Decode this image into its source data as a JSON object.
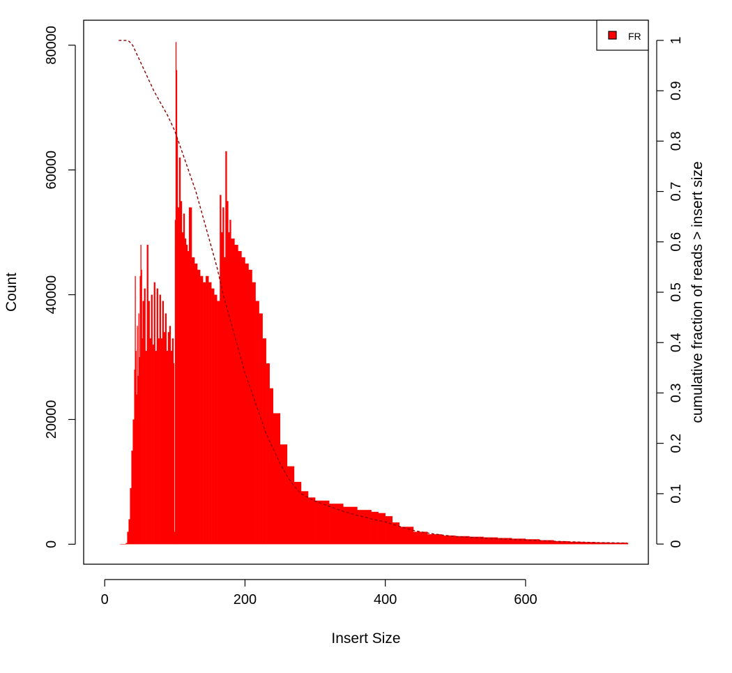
{
  "chart_data": {
    "type": "bar",
    "title": "",
    "xlabel": "Insert Size",
    "ylabel": "Count",
    "y2label": "cumulative fraction of reads > insert size",
    "xlim": [
      -30,
      775
    ],
    "ylim": [
      -3200,
      84000
    ],
    "y2lim": [
      -0.04,
      1.04
    ],
    "x_ticks": [
      0,
      200,
      400,
      600
    ],
    "y_ticks": [
      0,
      20000,
      40000,
      60000,
      80000
    ],
    "y2_ticks": [
      0,
      0.1,
      0.2,
      0.3,
      0.4,
      0.5,
      0.6,
      0.7,
      0.8,
      0.9,
      1
    ],
    "bar_color": "#ff0000",
    "legend": {
      "position": "top-right",
      "entries": [
        {
          "label": "FR",
          "color": "#ff0000"
        }
      ]
    },
    "series": [
      {
        "name": "FR",
        "kind": "bar",
        "x": [
          22,
          26,
          30,
          32,
          34,
          36,
          38,
          40,
          42,
          43,
          44,
          45,
          46,
          47,
          48,
          49,
          50,
          51,
          52,
          53,
          54,
          56,
          58,
          60,
          62,
          64,
          66,
          68,
          70,
          72,
          74,
          76,
          78,
          80,
          82,
          84,
          86,
          88,
          90,
          92,
          94,
          96,
          98,
          99,
          100,
          101,
          102,
          103,
          104,
          106,
          108,
          110,
          112,
          114,
          116,
          118,
          120,
          124,
          128,
          132,
          136,
          140,
          144,
          148,
          152,
          156,
          160,
          164,
          166,
          168,
          170,
          172,
          174,
          176,
          178,
          180,
          185,
          190,
          195,
          200,
          205,
          210,
          215,
          220,
          225,
          230,
          235,
          240,
          250,
          260,
          270,
          280,
          290,
          300,
          320,
          340,
          360,
          380,
          390,
          400,
          410,
          420,
          440,
          460,
          480,
          500,
          520,
          540,
          560,
          580,
          600,
          620,
          640,
          660,
          680,
          700,
          720,
          745
        ],
        "y": [
          0,
          0,
          200,
          2000,
          4000,
          9000,
          15000,
          20000,
          28000,
          43000,
          31000,
          24000,
          35000,
          27000,
          37000,
          30000,
          43000,
          48000,
          44000,
          33000,
          39000,
          41000,
          31000,
          48000,
          39000,
          33000,
          40000,
          32000,
          42000,
          31000,
          41000,
          33000,
          40000,
          33000,
          39000,
          34000,
          37000,
          31000,
          34000,
          35000,
          31000,
          33000,
          29000,
          2000,
          52000,
          80500,
          76000,
          65000,
          54000,
          62000,
          55000,
          50000,
          53000,
          49000,
          48000,
          47000,
          54000,
          46000,
          45000,
          44000,
          43000,
          42000,
          43000,
          42000,
          41000,
          40000,
          39000,
          56000,
          50000,
          54000,
          46000,
          63000,
          55000,
          50000,
          52000,
          49000,
          48000,
          47000,
          46000,
          45000,
          44000,
          42000,
          39000,
          37000,
          33000,
          29000,
          25000,
          21000,
          16000,
          12500,
          10000,
          8500,
          7500,
          7000,
          6500,
          6000,
          5500,
          5200,
          5000,
          4500,
          3500,
          2800,
          2000,
          1600,
          1400,
          1300,
          1200,
          1100,
          1000,
          900,
          800,
          650,
          500,
          400,
          350,
          300,
          250,
          200
        ]
      },
      {
        "name": "cumulative fraction of reads > insert size",
        "kind": "line",
        "axis": "right",
        "color": "#8b0000",
        "x": [
          20,
          25,
          30,
          35,
          40,
          50,
          60,
          70,
          80,
          90,
          100,
          110,
          120,
          130,
          140,
          150,
          160,
          170,
          180,
          190,
          200,
          210,
          220,
          230,
          240,
          250,
          260,
          270,
          280,
          300,
          320,
          340,
          360,
          380,
          400,
          420,
          440,
          460,
          480,
          500,
          550,
          600,
          650,
          700,
          745
        ],
        "y": [
          1.0,
          1.0,
          1.0,
          0.998,
          0.99,
          0.96,
          0.93,
          0.9,
          0.875,
          0.85,
          0.82,
          0.78,
          0.74,
          0.7,
          0.65,
          0.6,
          0.55,
          0.49,
          0.44,
          0.39,
          0.34,
          0.3,
          0.26,
          0.22,
          0.19,
          0.16,
          0.135,
          0.115,
          0.1,
          0.085,
          0.075,
          0.065,
          0.057,
          0.05,
          0.044,
          0.035,
          0.027,
          0.022,
          0.018,
          0.015,
          0.011,
          0.008,
          0.005,
          0.003,
          0.002
        ]
      }
    ]
  }
}
